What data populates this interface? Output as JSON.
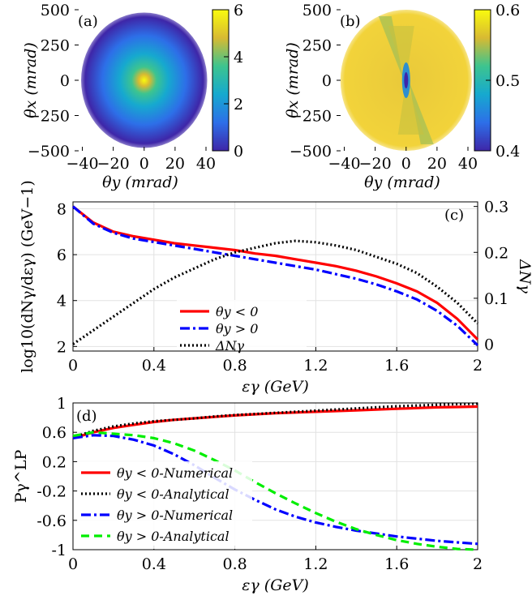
{
  "chart_data": [
    {
      "id": "a",
      "type": "heatmap",
      "panel_label": "(a)",
      "xlabel": "θy (mrad)",
      "ylabel": "θx (mrad)",
      "xticks": [
        "−40",
        "−20",
        "0",
        "20",
        "40"
      ],
      "yticks": [
        "500",
        "250",
        "0",
        "−250",
        "−500"
      ],
      "xlim": [
        -45,
        40
      ],
      "ylim": [
        -500,
        500
      ],
      "colorbar": {
        "range": [
          0,
          6
        ],
        "ticks": [
          "6",
          "4",
          "2",
          "0"
        ]
      },
      "colormap": [
        "#3e26a8",
        "#2d6fe8",
        "#16a9cf",
        "#3dc48f",
        "#d8ba32",
        "#f9fb0e"
      ]
    },
    {
      "id": "b",
      "type": "heatmap",
      "panel_label": "(b)",
      "xlabel": "θy (mrad)",
      "ylabel": "θx (mrad)",
      "xticks": [
        "−40",
        "−20",
        "0",
        "20",
        "40"
      ],
      "yticks": [
        "500",
        "250",
        "0",
        "−250",
        "−500"
      ],
      "xlim": [
        -45,
        40
      ],
      "ylim": [
        -500,
        500
      ],
      "colorbar": {
        "range": [
          0.4,
          0.6
        ],
        "ticks": [
          "0.6",
          "0.5",
          "0.4"
        ]
      },
      "colormap": [
        "#3e26a8",
        "#2d6fe8",
        "#16a9cf",
        "#3dc48f",
        "#d8ba32",
        "#f9fb0e"
      ]
    },
    {
      "id": "c",
      "type": "line",
      "panel_label": "(c)",
      "xlabel": "εγ (GeV)",
      "ylabel": "log10(dNγ/dεγ) (GeV−1)",
      "y2label": "ΔNγ",
      "xlim": [
        0,
        2
      ],
      "ylim": [
        1.8,
        8.3
      ],
      "y2lim": [
        -0.015,
        0.31
      ],
      "xticks": [
        "0",
        "0.4",
        "0.8",
        "1.2",
        "1.6",
        "2"
      ],
      "yticks": [
        "8",
        "6",
        "4",
        "2"
      ],
      "y2ticks": [
        "0.3",
        "0.2",
        "0.1",
        "0"
      ],
      "grid": true,
      "legend": "bottom-center",
      "x": [
        0,
        0.1,
        0.2,
        0.3,
        0.4,
        0.5,
        0.6,
        0.7,
        0.8,
        0.9,
        1.0,
        1.1,
        1.2,
        1.3,
        1.4,
        1.5,
        1.6,
        1.7,
        1.8,
        1.9,
        2.0
      ],
      "series": [
        {
          "name": "θy < 0",
          "axis": "left",
          "color": "#ff0000",
          "dash": "solid",
          "values": [
            8.1,
            7.4,
            7.0,
            6.8,
            6.65,
            6.5,
            6.4,
            6.3,
            6.2,
            6.05,
            5.95,
            5.8,
            5.65,
            5.5,
            5.3,
            5.05,
            4.75,
            4.4,
            3.9,
            3.2,
            2.3
          ]
        },
        {
          "name": "θy > 0",
          "axis": "left",
          "color": "#0000ff",
          "dash": "dashdot",
          "values": [
            8.1,
            7.35,
            6.95,
            6.7,
            6.55,
            6.4,
            6.25,
            6.1,
            5.95,
            5.8,
            5.65,
            5.5,
            5.35,
            5.15,
            4.95,
            4.7,
            4.4,
            4.05,
            3.55,
            2.9,
            2.05
          ]
        },
        {
          "name": "ΔNγ",
          "axis": "right",
          "color": "#000000",
          "dash": "dotted",
          "values": [
            0.0,
            0.03,
            0.06,
            0.09,
            0.12,
            0.145,
            0.165,
            0.185,
            0.2,
            0.21,
            0.22,
            0.225,
            0.222,
            0.215,
            0.205,
            0.19,
            0.175,
            0.155,
            0.125,
            0.09,
            0.045
          ]
        }
      ]
    },
    {
      "id": "d",
      "type": "line",
      "panel_label": "(d)",
      "xlabel": "εγ (GeV)",
      "ylabel": "Pγ^LP",
      "xlim": [
        0,
        2
      ],
      "ylim": [
        -1,
        1
      ],
      "xticks": [
        "0",
        "0.4",
        "0.8",
        "1.2",
        "1.6",
        "2"
      ],
      "yticks": [
        "1",
        "0.6",
        "0.2",
        "-0.2",
        "-0.6",
        "-1"
      ],
      "grid": true,
      "legend": "bottom-left",
      "x": [
        0,
        0.1,
        0.2,
        0.3,
        0.4,
        0.5,
        0.6,
        0.7,
        0.8,
        0.9,
        1.0,
        1.1,
        1.2,
        1.3,
        1.4,
        1.5,
        1.6,
        1.7,
        1.8,
        1.9,
        2.0
      ],
      "series": [
        {
          "name": "θy < 0-Numerical",
          "color": "#ff0000",
          "dash": "solid",
          "values": [
            0.52,
            0.6,
            0.66,
            0.7,
            0.74,
            0.77,
            0.79,
            0.81,
            0.83,
            0.845,
            0.86,
            0.87,
            0.88,
            0.89,
            0.9,
            0.91,
            0.92,
            0.93,
            0.94,
            0.945,
            0.95
          ]
        },
        {
          "name": "θy < 0-Analytical",
          "color": "#000000",
          "dash": "dotted",
          "values": [
            0.53,
            0.62,
            0.68,
            0.72,
            0.75,
            0.77,
            0.79,
            0.815,
            0.835,
            0.85,
            0.865,
            0.88,
            0.895,
            0.91,
            0.925,
            0.94,
            0.955,
            0.965,
            0.975,
            0.985,
            0.99
          ]
        },
        {
          "name": "θy > 0-Numerical",
          "color": "#0000ff",
          "dash": "dashdot",
          "values": [
            0.52,
            0.56,
            0.55,
            0.5,
            0.42,
            0.3,
            0.15,
            -0.02,
            -0.18,
            -0.32,
            -0.45,
            -0.55,
            -0.63,
            -0.69,
            -0.74,
            -0.78,
            -0.82,
            -0.85,
            -0.88,
            -0.9,
            -0.92
          ]
        },
        {
          "name": "θy > 0-Analytical",
          "color": "#00ee00",
          "dash": "dashed",
          "values": [
            0.55,
            0.6,
            0.58,
            0.56,
            0.52,
            0.45,
            0.35,
            0.22,
            0.08,
            -0.08,
            -0.23,
            -0.37,
            -0.5,
            -0.62,
            -0.72,
            -0.8,
            -0.87,
            -0.92,
            -0.96,
            -0.99,
            -1.0
          ]
        }
      ]
    }
  ]
}
